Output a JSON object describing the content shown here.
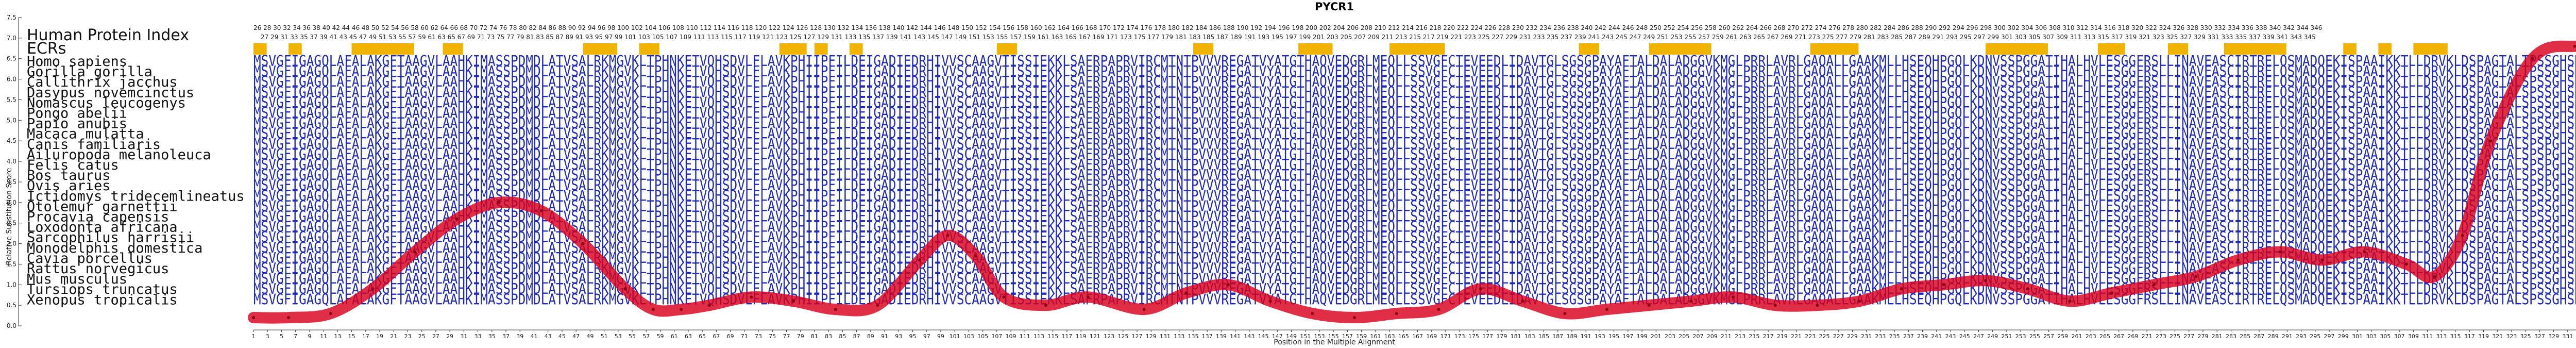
{
  "chart_data": {
    "type": "line",
    "title": "PYCR1",
    "xlabel": "Position in the Multiple Alignment",
    "ylabel": "Relative Substitution Score",
    "y_ticks": [
      "0.0",
      "0.5",
      "1.0",
      "1.5",
      "2.0",
      "2.5",
      "3.0",
      "3.5",
      "4.0",
      "4.5",
      "5.0",
      "5.5",
      "6.0",
      "6.5",
      "7.0",
      "7.5"
    ],
    "ylim": [
      0,
      7.5
    ],
    "xlim": [
      1,
      346
    ],
    "x_tick_step": 2,
    "protein_index_label": "Human Protein Index",
    "protein_index_top": "26 28 30 32 34 36 38 40 42 44 46 48 50 52 54 56 58 60 62 64 66 68 70 72 74 76 78 80 82 84 86 88 90 92 94 96 98 100 102 104 106 108 110 112 114 116 118 120 122 124 126 128 130 132 134 136 138 140 142 144 146 148 150 152 154 156 158 160 162 164 166 168 170 172 174 176 178 180 182 184 186 188 190 192 194 196 198 200 202 204 206 208 210 212 214 216 218 220 222 224 226 228 230 232 234 236 238 240 242 244 246 248 250 252 254 256 258 260 262 264 266 268 270 272 274 276 278 280 282 284 286 288 290 292 294 296 298 300 302 304 306 308 310 312 314 316 318 320 322 324 326 328 330 332 334 336 338 340 342 344 346",
    "protein_index_bottom": "27 29 31 33 35 37 39 41 43 45 47 49 51 53 55 57 59 61 63 65 67 69 71 73 75 77 79 81 83 85 87 89 91 93 95 97 99 101 103 105 107 109 111 113 115 117 119 121 123 125 127 129 131 133 135 137 139 141 143 145 147 149 151 153 155 157 159 161 163 165 167 169 171 173 175 177 179 181 183 185 187 189 191 193 195 197 199 201 203 205 207 209 211 213 215 217 219 221 223 225 227 229 231 233 235 237 239 241 243 245 247 249 251 253 255 257 259 261 263 265 267 269 271 273 275 277 279 281 283 285 287 289 291 293 295 297 299 301 303 305 307 309 311 313 315 317 319 321 323 325 327 329 331 333 335 337 339 341 343 345",
    "ecrs_label": "ECRs",
    "ecr_blocks": [
      [
        1,
        2
      ],
      [
        6,
        7
      ],
      [
        15,
        23
      ],
      [
        28,
        30
      ],
      [
        48,
        52
      ],
      [
        56,
        58
      ],
      [
        76,
        79
      ],
      [
        81,
        82
      ],
      [
        86,
        87
      ],
      [
        107,
        109
      ],
      [
        135,
        137
      ],
      [
        150,
        154
      ],
      [
        163,
        170
      ],
      [
        190,
        192
      ],
      [
        200,
        208
      ],
      [
        223,
        229
      ],
      [
        248,
        256
      ],
      [
        264,
        267
      ],
      [
        274,
        276
      ],
      [
        282,
        290
      ],
      [
        299,
        300
      ],
      [
        304,
        305
      ],
      [
        309,
        313
      ]
    ],
    "species": [
      "Homo sapiens",
      "Gorilla gorilla",
      "Callithrix jacchus",
      "Dasypus novemcinctus",
      "Nomascus leucogenys",
      "Pongo abelii",
      "Papio anubis",
      "Macaca mulatta",
      "Canis familiaris",
      "Ailuropoda melanoleuca",
      "Felis catus",
      "Bos taurus",
      "Ovis aries",
      "Ictidomys tridecemlineatus",
      "Otolemur garnettii",
      "Procavia capensis",
      "Loxodonta africana",
      "Sarcophilus harrisii",
      "Monodelphis domestica",
      "Cavia porcellus",
      "Rattus norvegicus",
      "Mus musculus",
      "Tursiops truncatus",
      "Xenopus tropicalis"
    ],
    "sequence_rows": [
      "MSVGFIGAGQLAFALAKGFTAAGVLAAHKIMASSPDMDLATVSALRKMGVKLTPHNKETVQHSDVLFLAVKPHIIPFILDEIGADIEDRHIVVSCAAGVTISSIEKKLSAFRPAPRVIRCMTNTPVVVREGATVYATGTHAQVEDGRLMEQLLSSVGFCTEVEEDLIDAVTGLSGSGPAYAFTALDALADGGVKMGLPRRLAVRLGAQALLGAAKMLLHSEQHPGQLKDNVSSPGGATIHALHVLESGGFRSLLINAVEASCIRTRELQSMADQEKISPAAIKKTLLDRVKLDSPAGTALTPSSGHSKLLPRSLAPAGKD",
      "MSVGFIGAGQLAFALAKGFTAAGVLAAHKIMASSPDMDLATVSALRKMGVKLTPHNKETVQHSDVLFLAVKPHIIPFILDEIGADIEDRHIVVSCAAGVTISSIEKKLSAFRPAPRVIRCMTNTPVVVREGATVYATGTHAQVEDGRLMEQLLSSVGFCTEVEEDLIDAVTGLSGSGPAYAFTALDALADGGVKMGLPRRLAVRLGAQALLGAAKMLLHSEQHPGQLKDNVSSPGGATIHALHVLESGGFRSLLINAVEASCIRTRELQSMADQEKISPAAIKKTLLDRVKLDSPAGTALTPSSGHSKLLPRSLAPAGKD",
      "MSVGFIGAGQLAFALAKGFTAAGVLAAHKIMASSPDMDLATVSALRKMGVKLTPHNKETVQHSDVLFLAVKPHIIPFILDEIGADIEDRHIVVSCAAGVTISSIEKKLSAFRPAPRVIRCMTNTPVVVREGATVYATGTHAQVEDGRLMEQLLSSVGFCTEVEEDLIDAVTGLSGSGPAYAFTALDALADGGVKMGLPRRLAVRLGAQALLGAAKMLLHSEQHPGQLKDNVSSPGGATIHALHVLESGGFRSLLINAVEASCIRTRELQSMADQEKISPAAIKKTLLDRVKLDSPAGTALSPSSGHSKLLPRSLAPAGKD",
      "MSVGFIGAGQLAFALAKGFTAAGVLAAHKIMASSPDMDLATVSALRKMGVKLTPHNKETVQHSDVLFLAVKPHIIPFILDEIGADIEDRHIVVSCAAGVTISSIEKKLSAFRPAPRVIRCMTNTPVVVREGATVYATGTHAQVEDGRLMEQLLSSVGFCTEVEEDLIDAVTGLSGSGPAYAFTALDALADGGVKMGLPRRLAVRLGAQALLGAAKMLLHSEQHPGQLKDNVSSPGGATIHALHVLESGGFRSLLINAVEASCIRTRELQSMADQEKISPAAIKKTLLDRVKLDSPAGTALSPSSGHSKLLPRSLAPAGKD",
      "MSVGFIGAGQLAFALAKGFTAAGVLAAHKIMASSPDMDLATVSALRKMGVKLTPHNKETVQHSDVLFLAVKPHIIPFILDEIGADIEDRHIVVSCAAGVTISSIEKKLSAFRPAPRVIRCMTNTPVVVREGATVYATGTHAQVEDGRLMEQLLSSVGFCTEVEEDLIDAVTGLSGSGPAYAFTALDALADGGVKMGLPRRLAVRLGAQALLGAAKMLLHSEQHPGQLKDNVSSPGGATIHALHVLESGGFRSLLINAVEASCIRTRELQSMADQEKISPAAIKKTLLDRVKLDSPAGTALSPSSGHSKLLPRSLAPAGKD",
      "MSVGFIGAGQLAFALAKGFTAAGVLAAHKIMASSPDMDLATVSALRKMGVKLTPHNKETVQHSDVLFLAVKPHIIPFILDEIGADIEDRHIVVSCAAGVTISSIEKKLSAFRPAPRVIRCMTNTPVVVREGATVYATGTHAQVEDGRLMEQLLSSVGFCTEVEEDLIDAVTGLSGSGPAYAFTALDALADGGVKMGLPRRLAVRLGAQALLGAAKMLLHSEQHPGQLKDNVSSPGGATIHALHVLESGGFRSLLINAVEASCIRTRELQSMADQEKISPAAIKKTLLDRVKLDSPAGTALSPSSGHSKLLPRSLAPAGKD",
      "MSVGFIGAGQLAFALAKGFTAAGVLAAHKIMASSPDMDLATVSALRKMGVKLTPHNKETVQHSDVLFLAVKPHIIPFILDEIGADIEDRHIVVSCAAGVTISSIEKKLSAFRPAPRVIRCMTNTPVVVREGATVYATGTHAQVEDGRLMEQLLSSVGFCTEVEEDLIDAVTGLSGSGPAYAFTALDALADGGVKMGLPRRLAVRLGAQALLGAAKMLLHSEQHPGQLKDNVSSPGGATIHALHVLESGGFRSLLINAVEASCIRTRELQSMADQEKISPAAIKKTLLDRVKLDSPAGTALSPSSGHSKLLPRSLAPAGKD",
      "MSVGFIGAGQLAFALAKGFTAAGVLAAHKIMASSPDMDLATVSALRKMGVKLTPHNKETVQHSDVLFLAVKPHIIPFILDEIGADIEDRHIVVSCAAGVTISSIEKKLSAFRPAPRVIRCMTNTPVVVREGATVYATGTHAQVEDGRLMEQLLSSVGFCTEVEEDLIDAVTGLSGSGPAYAFTALDALADGGVKMGLPRRLAVRLGAQALLGAAKMLLHSEQHPGQLKDNVSSPGGATIHALHVLESGGFRSLLINAVEASCIRTRELQSMADQEKISPAAIKKTLLDRVKLDSPAGTALSPSSGHSKLLPRSLAPAGKD",
      "MSVGFIGAGQLAFALAKGFTAAGVLAAHKIMASSPDMDLATVSALRKMGVKLTPHNKETVQHSDVLFLAVKPHIIPFILDEIGADIEDRHIVVSCAAGVTISSIEKKLSAFRPAPRVIRCMTNTPVVVREGATVYATGTHAQVEDGRLMEQLLSSVGFCTEVEEDLIDAVTGLSGSGPAYAFTALDALADGGVKMGLPRRLAVRLGAQALLGAAKMLLHSEQHPGQLKDNVSSPGGATIHALHVLESGGFRSLLINAVEASCIRTRELQSMADQEKISPAAIKKTLLDRVKLDSPAGTALSPSPGHSKLLPRSLAPAGKD",
      "MSVGFIGAGQLAFALAKGFTAAGVLAAHKIMASSPDMDLATVSALRKMGVKLTPHNKETVQHSDVLFLAVKPHIIPFILDEIGADIEDRHIVVSCAAGVTISSIEKKLSAFRPAPRVIRCMTNTPVVVREGATVYATGTHAQVEDGRLMEQLLSSVGFCTEVEEDLIDAVTGLSGSGPAYAFTALDALADGGVKMGLPRRLAVRLGAQALLGAAKMLLHSEQHPGQLKDNVSSPGGATIHALHVLESGGFRSLLINAVEASCIRTRELQSMADQEKISPAAIKKTLLDRVKLDSPAGTALSPSPGHSKLLPRSLAPAGKD",
      "MSVGFIGAGQLAFALAKGFTAAGVLAAHKIMASSPDMDLATVSALRKMGVKLTPHNKETVQHSDVLFLAVKPHIIPFILDEIGADIEDRHIVVSCAAGVTISSIEKKLSAFRPAPRVIRCMTNTPVVVREGATVYATGTHAQVEDGRLMEQLLSSVGFCTEVEEDLIDAVTGLSGSGPAYAFTALDALADGGVKMGLPRRLAVRLGAQALLGAAKMLLHSEQHPGQLKDNVSSPGGATIHALHVLESGGFRSLLINAVEASCIRTRELQSMADQEKISPAAIKKTLLDRVKLDSPAGTALSPSPGHSKLLPRSLAPAGKD",
      "MSVGFIGAGQLAFALAKGFTAAGVLAAHKIMASSPDMDLATVSALRKMGVKLTPHNKETVQHSDVLFLAVKPHIIPFILDEIGADIEDRHIVVSCAAGVTISSIEKKLSAFRPAPRVIRCMTNTPVVVREGATVYATGTHAQVEDGRLMEQLLSSVGFCTEVEEDLIDAVTGLSGSGPAYAFTALDALADGGVKMGLPRRLAVRLGAQALLGAAKMLLHSEQHPGQLKDNVSSPGGATIHALHVLESGGFRSLLINAVEASCIRTRELQSMADQEKISPAAIKKTLLDRVKLDSPAGTALSPSPGHSKLLPRSLAPAGKD",
      "MSVGFIGAGQLAFALAKGFTAAGVLAAHKIMASSPDMDLATVSALRKMGVKLTPHNKETVQHSDVLFLAVKPHIIPFILDEIGADIEDRHIVVSCAAGVTISSIEKKLSAFRPAPRVIRCMTNTPVVVREGATVYATGTHAQVEDGRLMEQLLSSVGFCTEVEEDLIDAVTGLSGSGPAYAFTALDALADGGVKMGLPRRLAVRLGAQALLGAAKMLLHSEQHPGQLKDNVSSPGGATIHALHVLESGGFRSLLINAVEASCIRTRELQSMADQEKISPAAIKKTLLDRVKLDSPAGTALSPSPGHSKLLPRSLAPAGKD",
      "MSVGFIGAGQLAFALAKGFTAAGVLAAHKIMASSPDMDLATVSALRKMGVKLTPHNKETVQHSDVLFLAVKPHIIPFILDEIGADIEDRHIVVSCAAGVTISSIEKKLSAFRPAPRVIRCMTNTPVVVREGATVYATGTHAQVEDGRLMEQLLSSVGFCTEVEEDLIDAVTGLSGSGPAYAFTALDALADGGVKMGLPRRLAVRLGAQALLGAAKMLLHSEQHPGQLKDNVSSPGGATIHALHVLESGGFRSLLINAVEASCIRTRELQSMADQEKISPAAIKKTLLDRVKLDSPAGTALSPSSGHSKLLPRSLAPAGKD",
      "MSVGFIGAGQLAFALAKGFTAAGVLAAHKIMASSPDMDLATVSALRKMGVKLTPHNKETVQHSDVLFLAVKPHIIPFILDEIGADIEDRHIVVSCAAGVTISSIEKKLSAFRPAPRVIRCMTNTPVVVREGATVYATGTHAQVEDGRLMEQLLSSVGFCTEVEEDLIDAVTGLSGSGPAYAFTALDALADGGVKMGLPRRLAVRLGAQALLGAAKMLLHSEQHPGQLKDNVSSPGGATIHALHVLESGGFRSLLINAVEASCIRTRELQSMADQEKISPAAIKKTLLDRVKLDSPAGTALSPSSGHSKLLPRSLAPAGKD",
      "MSVGFIGAGQLAFALAKGFTAAGVLAAHKIMASSPDMDLATVSALRKMGVKLTPHNKETVQHSDVLFLAVKPHIIPFILDEIGADIEDRHIVVSCAAGVTISSIEKKLSAFRPAPRVIRCMTNTPVVVREGATVYATGTHAQVEDGRLMEQLLSSVGFCTEVEEDLIDAVTGLSGSGPAYAFTALDALADGGVKMGLPRRLAVRLGAQALLGAAKMLLHSEQHPGQLKDNVSSPGGATIHALHVLESGGFRSLLINAVEASCIRTRELQSMADQEKISPAAIKKTLLDRVKLDSPAGTALSPSSGHSKLLPRSLAPAGKD",
      "MSVGFIGAGQLAFALAKGFTAAGVLAAHKIMASSPDMDLATVSALRKMGVKLTPHNKETVQHSDVLFLAVKPHIIPFILDEIGADIEDRHIVVSCAAGVTISSIEKKLSAFRPAPRVIRCMTNTPVVVREGATVYATGTHAQVEDGRLMEQLLSSVGFCTEVEEDLIDAVTGLSGSGPAYAFTALDALADGGVKMGLPRRLAVRLGAQALLGAAKMLLHSEQHPGQLKDNVSSPGGATIHALHVLESGGFRSLLINAVEASCIRTRELQSMADQEKISPAAIKKTLLDRVKLDSPAGTALSPSSGHSKLLPRSLAPAGKD",
      "MSVGFIGAGQLAFALAKGFTAAGVLAAHKIMASSPDMDLATVSALRKMGVKLTPHNKETVQHSDVLFLAVKPHIIPFILDEIGADIEDRHIVVSCAAGVTISSIEKKLSAFRPAPRVIRCMTNTPVVVREGATVYATGTHAQVEDGRLMEQLLSSVGFCTEVEEDLIDAVTGLSGSGPAYAFTALDALADGGVKMGLPRRLAVRLGAQALLGAAKMLLHSEQHPGQLKDNVSSPGGATIHALHVLESGGFRSLLINAVEASCIRTRELQSMADQEKISPAAIKKTLLDRVKLDSPAGTALSPSSGHSKLLPRSLAPAGKD",
      "MSVGFIGAGQLAFALAKGFTAAGVLAAHKIMASSPDMDLATVSALRKMGVKLTPHNKETVQHSDVLFLAVKPHIIPFILDEIGADIEDRHIVVSCAAGVTISSIEKKLSAFRPAPRVIRCMTNTPVVVREGATVYATGTHAQVEDGRLMEQLLSSVGFCTEVEEDLIDAVTGLSGSGPAYAFTALDALADGGVKMGLPRRLAVRLGAQALLGAAKMLLHSEQHPGQLKDNVSSPGGATIHALHVLESGGFRSLLINAVEASCIRTRELQSMADQEKISPAAIKKTLLDRVKLDSPAGTALSPSSGHSKLLPRSLAPAGKD",
      "MSVGFIGAGQLAFALAKGFTAAGVLAAHKIMASSPDMDLATVSALRKMGVKLTPHNKETVQHSDVLFLAVKPHIIPFILDEIGADIEDRHIVVSCAAGVTISSIEKKLSAFRPAPRVIRCMTNTPVVVREGATVYATGTHAQVEDGRLMEQLLSSVGFCTEVEEDLIDAVTGLSGSGPAYAFTALDALADGGVKMGLPRRLAVRLGAQALLGAAKMLLHSEQHPGQLKDNVSSPGGATIHALHVLESGGFRSLLINAVEASCIRTRELQSMADQEKISPAAIKKTLLDRVKLDSPAGTALSPSSGHSKLLPRSLAPAGKD",
      "MSVGFIGAGQLAFALAKGFTAAGVLAAHKIMASSPDMDLATVSALRKMGVKLTPHNKETVQHSDVLFLAVKPHIIPFILDEIGADIEDRHIVVSCAAGVTISSIEKKLSAFRPAPRVIRCMTNTPVVVREGATVYATGTHAQVEDGRLMEQLLSSVGFCTEVEEDLIDAVTGLSGSGPAYAFTALDALADGGVKMGLPRRLAVRLGAQALLGAAKMLLHSEQHPGQLKDNVSSPGGATIHALHVLESGGFRSLLINAVEASCIRTRELQSMADQEKISPAAIKKTLLDRVKLDSPAGTALSPSSGHSKLLPRSLAPAGKD",
      "MSVGFIGAGQLAFALAKGFTAAGVLAAHKIMASSPDMDLATVSALRKMGVKLTPHNKETVQHSDVLFLAVKPHIIPFILDEIGADIEDRHIVVSCAAGVTISSIEKKLSAFRPAPRVIRCMTNTPVVVREGATVYATGTHAQVEDGRLMEQLLSSVGFCTEVEEDLIDAVTGLSGSGPAYAFTALDALADGGVKMGLPRRLAVRLGAQALLGAAKMLLHSEQHPGQLKDNVSSPGGATIHALHVLESGGFRSLLINAVEASCIRTRELQSMADQEKISPAAIKKTLLDRVKLDSPAGTALSPSSGHSKLLPRSLAPAGKD",
      "MSVGFIGAGQLAFALAKGFTAAGVLAAHKIMASSPDMDLATVSALRKMGVKLTPHNKETVQHSDVLFLAVKPHIIPFILDEIGADIEDRHIVVSCAAGVTISSIEKKLSAFRPAPRVIRCMTNTPVVVREGATVYATGTHAQVEDGRLMEQLLSSVGFCTEVEEDLIDAVTGLSGSGPAYAFTALDALADGGVKMGLPRRLAVRLGAQALLGAAKMLLHSEQHPGQLKDNVSSPGGATIHALHVLESGGFRSLLINAVEASCIRTRELQSMADQEKISPAAIKKTLLDRVKLDSPAGTALSPSSGHSKLLPRSLAPAGKD",
      "MSVGFIGAGQLAFALAKGFTAAGVLAAHKIMASSPDMDLATVSALRKMGVKLTPHNKETVQHSDVLFLAVKPHIIPFILDEIGADIEDRHIVVSCAAGVTISSIEKKLSAFRPAPRVIRCMTNTPVVVREGATVYATGTHAQVEDGRLMEQLLSSVGFCTEVEEDLIDAVTGLSGSGPAYAFTALDALADGGVKMGLPRRLAVRLGAQALLGAAKMLLHSEQHPGQLKDNVSSPGGATIHALHVLESGGFRSLLINAVEASCIRTRELQSMADQEKISPAAIKKTLLDRVKLDSPAGTALSPSSGHSKLLPRSLAPAGKD"
    ],
    "series": [
      {
        "x": [
          1,
          6,
          12,
          18,
          24,
          30,
          36,
          42,
          48,
          54,
          58,
          62,
          66,
          72,
          78,
          84,
          90,
          96,
          100,
          104,
          108,
          114,
          120,
          128,
          134,
          140,
          146,
          152,
          158,
          164,
          170,
          176,
          182,
          188,
          194,
          200,
          206,
          212,
          218,
          224,
          230,
          236,
          242,
          248,
          254,
          260,
          266,
          272,
          278,
          284,
          290,
          296,
          302,
          308,
          312,
          316,
          320,
          326,
          332,
          338,
          344,
          346
        ],
        "y": [
          0.2,
          0.2,
          0.3,
          0.9,
          1.8,
          2.6,
          3.0,
          2.8,
          2.0,
          0.9,
          0.4,
          0.4,
          0.5,
          0.7,
          0.6,
          0.4,
          0.5,
          1.6,
          2.2,
          1.7,
          0.7,
          0.5,
          0.7,
          0.4,
          0.8,
          1.0,
          0.6,
          0.3,
          0.2,
          0.3,
          0.4,
          0.9,
          0.6,
          0.3,
          0.4,
          0.5,
          0.6,
          0.7,
          0.5,
          0.5,
          0.6,
          0.9,
          1.0,
          1.1,
          0.9,
          0.6,
          0.8,
          1.0,
          1.2,
          1.6,
          1.8,
          1.6,
          1.8,
          1.5,
          1.2,
          2.2,
          4.5,
          6.5,
          6.8,
          6.6,
          6.2,
          5.8
        ]
      }
    ],
    "line_color": "#d8001c",
    "ecr_color": "#f0b400",
    "sequence_color": "#1f2bb8",
    "grid": false
  }
}
